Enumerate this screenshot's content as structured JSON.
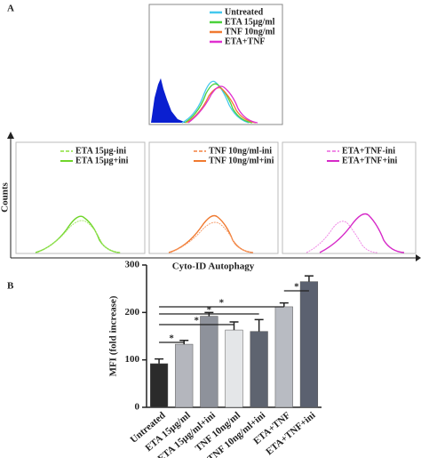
{
  "panel_a": {
    "label": "A",
    "legend": [
      "Untreated",
      "ETA 15µg/ml",
      "TNF 10ng/ml",
      "ETA+TNF"
    ],
    "panels": [
      [
        "ETA 15µg-ini",
        "ETA 15µg+ini"
      ],
      [
        "TNF 10ng/ml-ini",
        "TNF 10ng/ml+ini"
      ],
      [
        "ETA+TNF-ini",
        "ETA+TNF+ini"
      ]
    ],
    "ylabel": "Counts",
    "xlabel": "Cyto-ID Autophagy"
  },
  "chart_data": {
    "type": "bar",
    "label": "B",
    "categories": [
      "Untreated",
      "ETA 15µg/ml",
      "ETA 15µg/ml+ini",
      "TNF 10ng/ml",
      "TNF 10ng/ml+ini",
      "ETA+TNF",
      "ETA+TNF+ini"
    ],
    "values": [
      92,
      133,
      192,
      163,
      160,
      212,
      265
    ],
    "errors": [
      10,
      8,
      8,
      17,
      25,
      8,
      12
    ],
    "colors": [
      "#2b2b2b",
      "#b4b6bd",
      "#8e929b",
      "#e4e6e8",
      "#5e6470",
      "#b8bbc2",
      "#5b6170"
    ],
    "ylabel": "MFI (fold increase)",
    "ylim": [
      0,
      300
    ],
    "yticks": [
      0,
      100,
      200,
      300
    ],
    "significance": [
      {
        "between": [
          "Untreated",
          "ETA 15µg/ml"
        ],
        "label": "*"
      },
      {
        "between": [
          "Untreated",
          "TNF 10ng/ml"
        ],
        "label": "*"
      },
      {
        "between": [
          "Untreated",
          "TNF 10ng/ml+ini"
        ],
        "label": "*"
      },
      {
        "between": [
          "Untreated",
          "ETA+TNF"
        ],
        "label": "*"
      },
      {
        "between": [
          "ETA+TNF",
          "ETA+TNF+ini"
        ],
        "label": "*"
      }
    ]
  }
}
